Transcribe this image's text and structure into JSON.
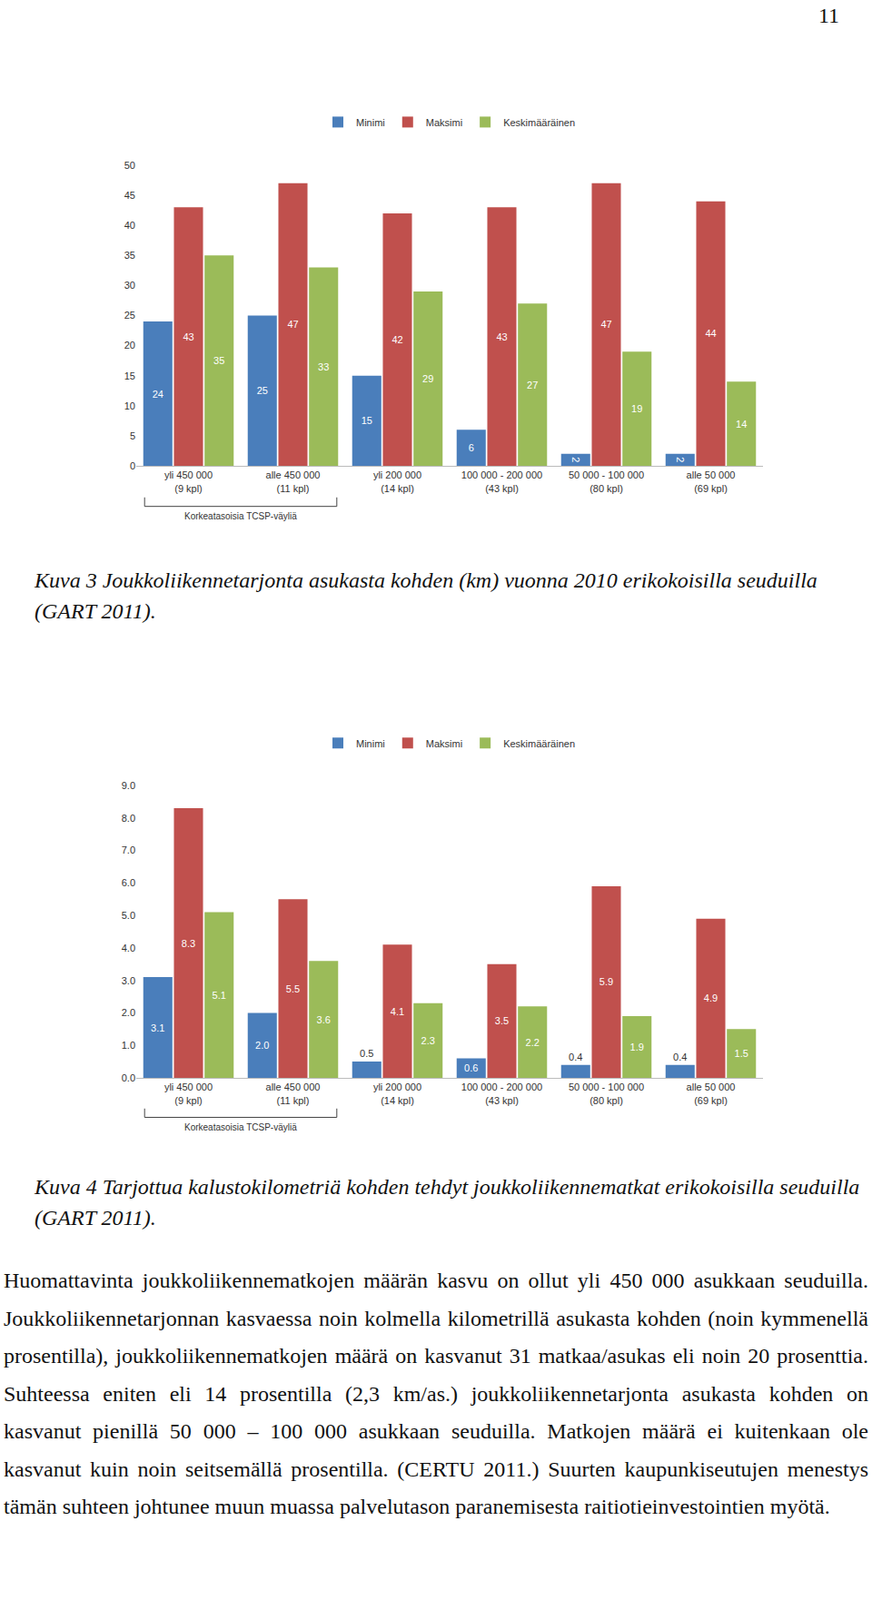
{
  "page_number": "11",
  "chart_data": [
    {
      "type": "bar",
      "categories": [
        "yli 450 000\n(9 kpl)",
        "alle 450 000\n(11 kpl)",
        "yli 200 000\n(14 kpl)",
        "100 000 - 200 000\n(43 kpl)",
        "50 000 - 100 000\n(80 kpl)",
        "alle 50 000\n(69 kpl)"
      ],
      "series": [
        {
          "name": "Minimi",
          "color": "#4a7ebb",
          "values": [
            24,
            25,
            15,
            6,
            2,
            2
          ]
        },
        {
          "name": "Maksimi",
          "color": "#c0504d",
          "values": [
            43,
            47,
            42,
            43,
            47,
            44
          ]
        },
        {
          "name": "Keskimääräinen",
          "color": "#9bbb59",
          "values": [
            35,
            33,
            29,
            27,
            19,
            14
          ]
        }
      ],
      "ylim": [
        0,
        50
      ],
      "yticks": [
        0,
        5,
        10,
        15,
        20,
        25,
        30,
        35,
        40,
        45,
        50
      ],
      "grid": false,
      "legend": "top",
      "data_labels": true,
      "annotations": [
        {
          "text": "Korkeatasoisia TCSP-väyliä",
          "span": [
            "yli 450 000\n(9 kpl)",
            "alle 450 000\n(11 kpl)"
          ]
        }
      ]
    },
    {
      "type": "bar",
      "categories": [
        "yli 450 000\n(9 kpl)",
        "alle 450 000\n(11 kpl)",
        "yli 200 000\n(14 kpl)",
        "100 000 - 200 000\n(43 kpl)",
        "50 000 - 100 000\n(80 kpl)",
        "alle 50 000\n(69 kpl)"
      ],
      "series": [
        {
          "name": "Minimi",
          "color": "#4a7ebb",
          "values": [
            3.1,
            2.0,
            0.5,
            0.6,
            0.4,
            0.4
          ],
          "value_labels": [
            "3.1",
            "2.0",
            "0.5",
            "0.6",
            "0.4",
            "0.4"
          ]
        },
        {
          "name": "Maksimi",
          "color": "#c0504d",
          "values": [
            8.3,
            5.5,
            4.1,
            3.5,
            5.9,
            4.9
          ]
        },
        {
          "name": "Keskimääräinen",
          "color": "#9bbb59",
          "values": [
            5.1,
            3.6,
            2.3,
            2.2,
            1.9,
            1.5
          ]
        }
      ],
      "ylim": [
        0,
        9
      ],
      "yticks": [
        {
          "value": 0,
          "label": "0.0"
        },
        {
          "value": 1,
          "label": "1.0"
        },
        {
          "value": 2,
          "label": "2.0"
        },
        {
          "value": 3,
          "label": "3.0"
        },
        {
          "value": 4,
          "label": "4.0"
        },
        {
          "value": 5,
          "label": "5.0"
        },
        {
          "value": 6,
          "label": "6.0"
        },
        {
          "value": 7,
          "label": "7.0"
        },
        {
          "value": 8,
          "label": "8.0"
        },
        {
          "value": 9,
          "label": "9.0"
        }
      ],
      "grid": false,
      "legend": "top",
      "data_labels": true,
      "annotations": [
        {
          "text": "Korkeatasoisia TCSP-väyliä",
          "span": [
            "yli 450 000\n(9 kpl)",
            "alle 450 000\n(11 kpl)"
          ]
        }
      ]
    }
  ],
  "captions": [
    "Kuva 3 Joukkoliikennetarjonta asukasta kohden (km) vuonna 2010 erikokoisilla seuduilla (GART 2011).",
    "Kuva 4 Tarjottua kalustokilometriä kohden tehdyt joukkoliikennematkat erikokoisilla seuduilla (GART 2011)."
  ],
  "paragraph": "Huomattavinta joukkoliikennematkojen määrän kasvu on ollut yli 450 000 asukkaan seuduilla. Joukkoliikennetarjonnan kasvaessa noin kolmella kilometrillä asukasta kohden (noin kymmenellä prosentilla), joukkoliikennematkojen määrä on kasvanut 31 matkaa/asukas eli noin 20 prosenttia. Suhteessa eniten eli 14 prosentilla (2,3 km/as.) joukkoliikennetarjonta asukasta kohden on kasvanut pienillä 50 000 – 100 000 asukkaan seuduilla. Matkojen määrä ei kuitenkaan ole kasvanut kuin noin seitsemällä prosentilla. (CERTU 2011.) Suurten kaupunkiseutujen menestys tämän suhteen johtunee muun muassa palvelutason paranemisesta raitiotieinvestointien myötä."
}
